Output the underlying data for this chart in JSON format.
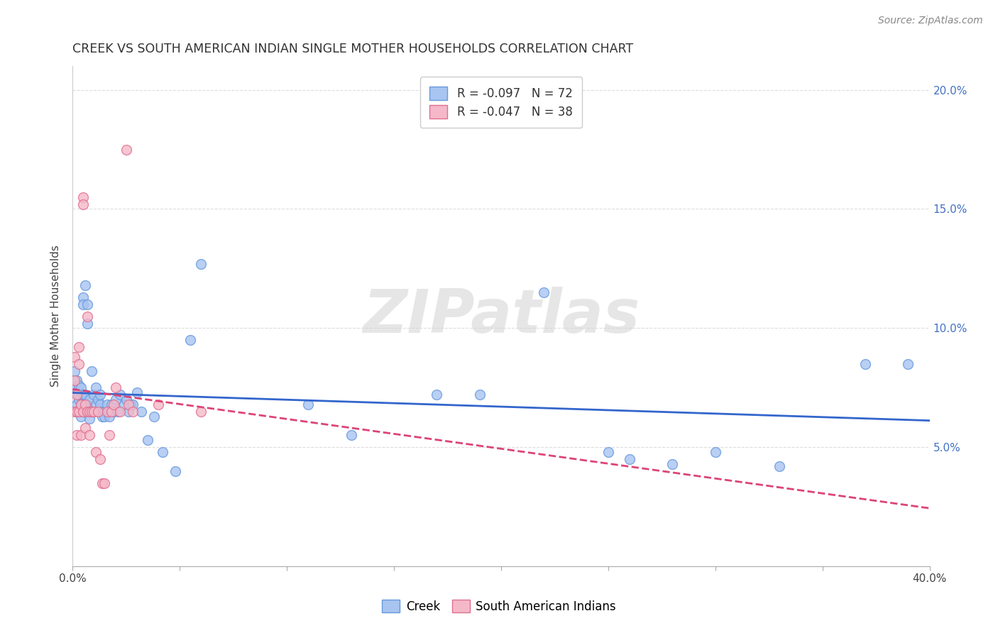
{
  "title": "CREEK VS SOUTH AMERICAN INDIAN SINGLE MOTHER HOUSEHOLDS CORRELATION CHART",
  "source": "Source: ZipAtlas.com",
  "ylabel": "Single Mother Households",
  "xlim": [
    0.0,
    0.4
  ],
  "ylim": [
    0.0,
    0.21
  ],
  "xticks": [
    0.0,
    0.05,
    0.1,
    0.15,
    0.2,
    0.25,
    0.3,
    0.35,
    0.4
  ],
  "xticklabels": [
    "0.0%",
    "",
    "",
    "",
    "",
    "",
    "",
    "",
    "40.0%"
  ],
  "yticks_right": [
    0.05,
    0.1,
    0.15,
    0.2
  ],
  "yticklabels_right": [
    "5.0%",
    "10.0%",
    "15.0%",
    "20.0%"
  ],
  "watermark": "ZIPatlas",
  "creek_color": "#A8C4F0",
  "creek_edge_color": "#6699DD",
  "sa_color": "#F5B8C8",
  "sa_edge_color": "#E07090",
  "creek_line_color": "#3366CC",
  "sa_line_color": "#DD4477",
  "legend_R_creek": "R = -0.097",
  "legend_N_creek": "N = 72",
  "legend_R_sa": "R = -0.047",
  "legend_N_sa": "N = 38",
  "grid_color": "#DDDDDD",
  "marker_size": 100,
  "title_fontsize": 12.5,
  "axis_label_fontsize": 11,
  "tick_fontsize": 11,
  "creek_x": [
    0.001,
    0.001,
    0.002,
    0.002,
    0.002,
    0.003,
    0.003,
    0.003,
    0.003,
    0.004,
    0.004,
    0.004,
    0.005,
    0.005,
    0.005,
    0.005,
    0.006,
    0.006,
    0.006,
    0.007,
    0.007,
    0.007,
    0.008,
    0.008,
    0.008,
    0.009,
    0.009,
    0.01,
    0.01,
    0.011,
    0.011,
    0.012,
    0.012,
    0.013,
    0.013,
    0.014,
    0.014,
    0.015,
    0.015,
    0.016,
    0.017,
    0.017,
    0.018,
    0.019,
    0.02,
    0.021,
    0.022,
    0.024,
    0.025,
    0.026,
    0.027,
    0.028,
    0.03,
    0.032,
    0.035,
    0.038,
    0.042,
    0.048,
    0.055,
    0.06,
    0.11,
    0.13,
    0.17,
    0.19,
    0.22,
    0.25,
    0.26,
    0.28,
    0.3,
    0.33,
    0.37,
    0.39
  ],
  "creek_y": [
    0.075,
    0.082,
    0.073,
    0.078,
    0.068,
    0.076,
    0.065,
    0.07,
    0.072,
    0.075,
    0.068,
    0.063,
    0.113,
    0.11,
    0.072,
    0.065,
    0.118,
    0.072,
    0.065,
    0.11,
    0.102,
    0.068,
    0.07,
    0.065,
    0.062,
    0.082,
    0.065,
    0.072,
    0.065,
    0.075,
    0.068,
    0.07,
    0.065,
    0.072,
    0.068,
    0.065,
    0.063,
    0.065,
    0.063,
    0.068,
    0.065,
    0.063,
    0.068,
    0.065,
    0.07,
    0.065,
    0.072,
    0.068,
    0.07,
    0.065,
    0.068,
    0.068,
    0.073,
    0.065,
    0.053,
    0.063,
    0.048,
    0.04,
    0.095,
    0.127,
    0.068,
    0.055,
    0.072,
    0.072,
    0.115,
    0.048,
    0.045,
    0.043,
    0.048,
    0.042,
    0.085,
    0.085
  ],
  "sa_x": [
    0.001,
    0.001,
    0.001,
    0.002,
    0.002,
    0.002,
    0.003,
    0.003,
    0.003,
    0.004,
    0.004,
    0.005,
    0.005,
    0.005,
    0.006,
    0.006,
    0.007,
    0.007,
    0.008,
    0.008,
    0.009,
    0.01,
    0.011,
    0.012,
    0.013,
    0.014,
    0.015,
    0.016,
    0.017,
    0.018,
    0.019,
    0.02,
    0.022,
    0.025,
    0.026,
    0.028,
    0.04,
    0.06
  ],
  "sa_y": [
    0.088,
    0.078,
    0.065,
    0.072,
    0.065,
    0.055,
    0.092,
    0.085,
    0.065,
    0.068,
    0.055,
    0.155,
    0.152,
    0.065,
    0.068,
    0.058,
    0.105,
    0.065,
    0.065,
    0.055,
    0.065,
    0.065,
    0.048,
    0.065,
    0.045,
    0.035,
    0.035,
    0.065,
    0.055,
    0.065,
    0.068,
    0.075,
    0.065,
    0.175,
    0.068,
    0.065,
    0.068,
    0.065
  ]
}
